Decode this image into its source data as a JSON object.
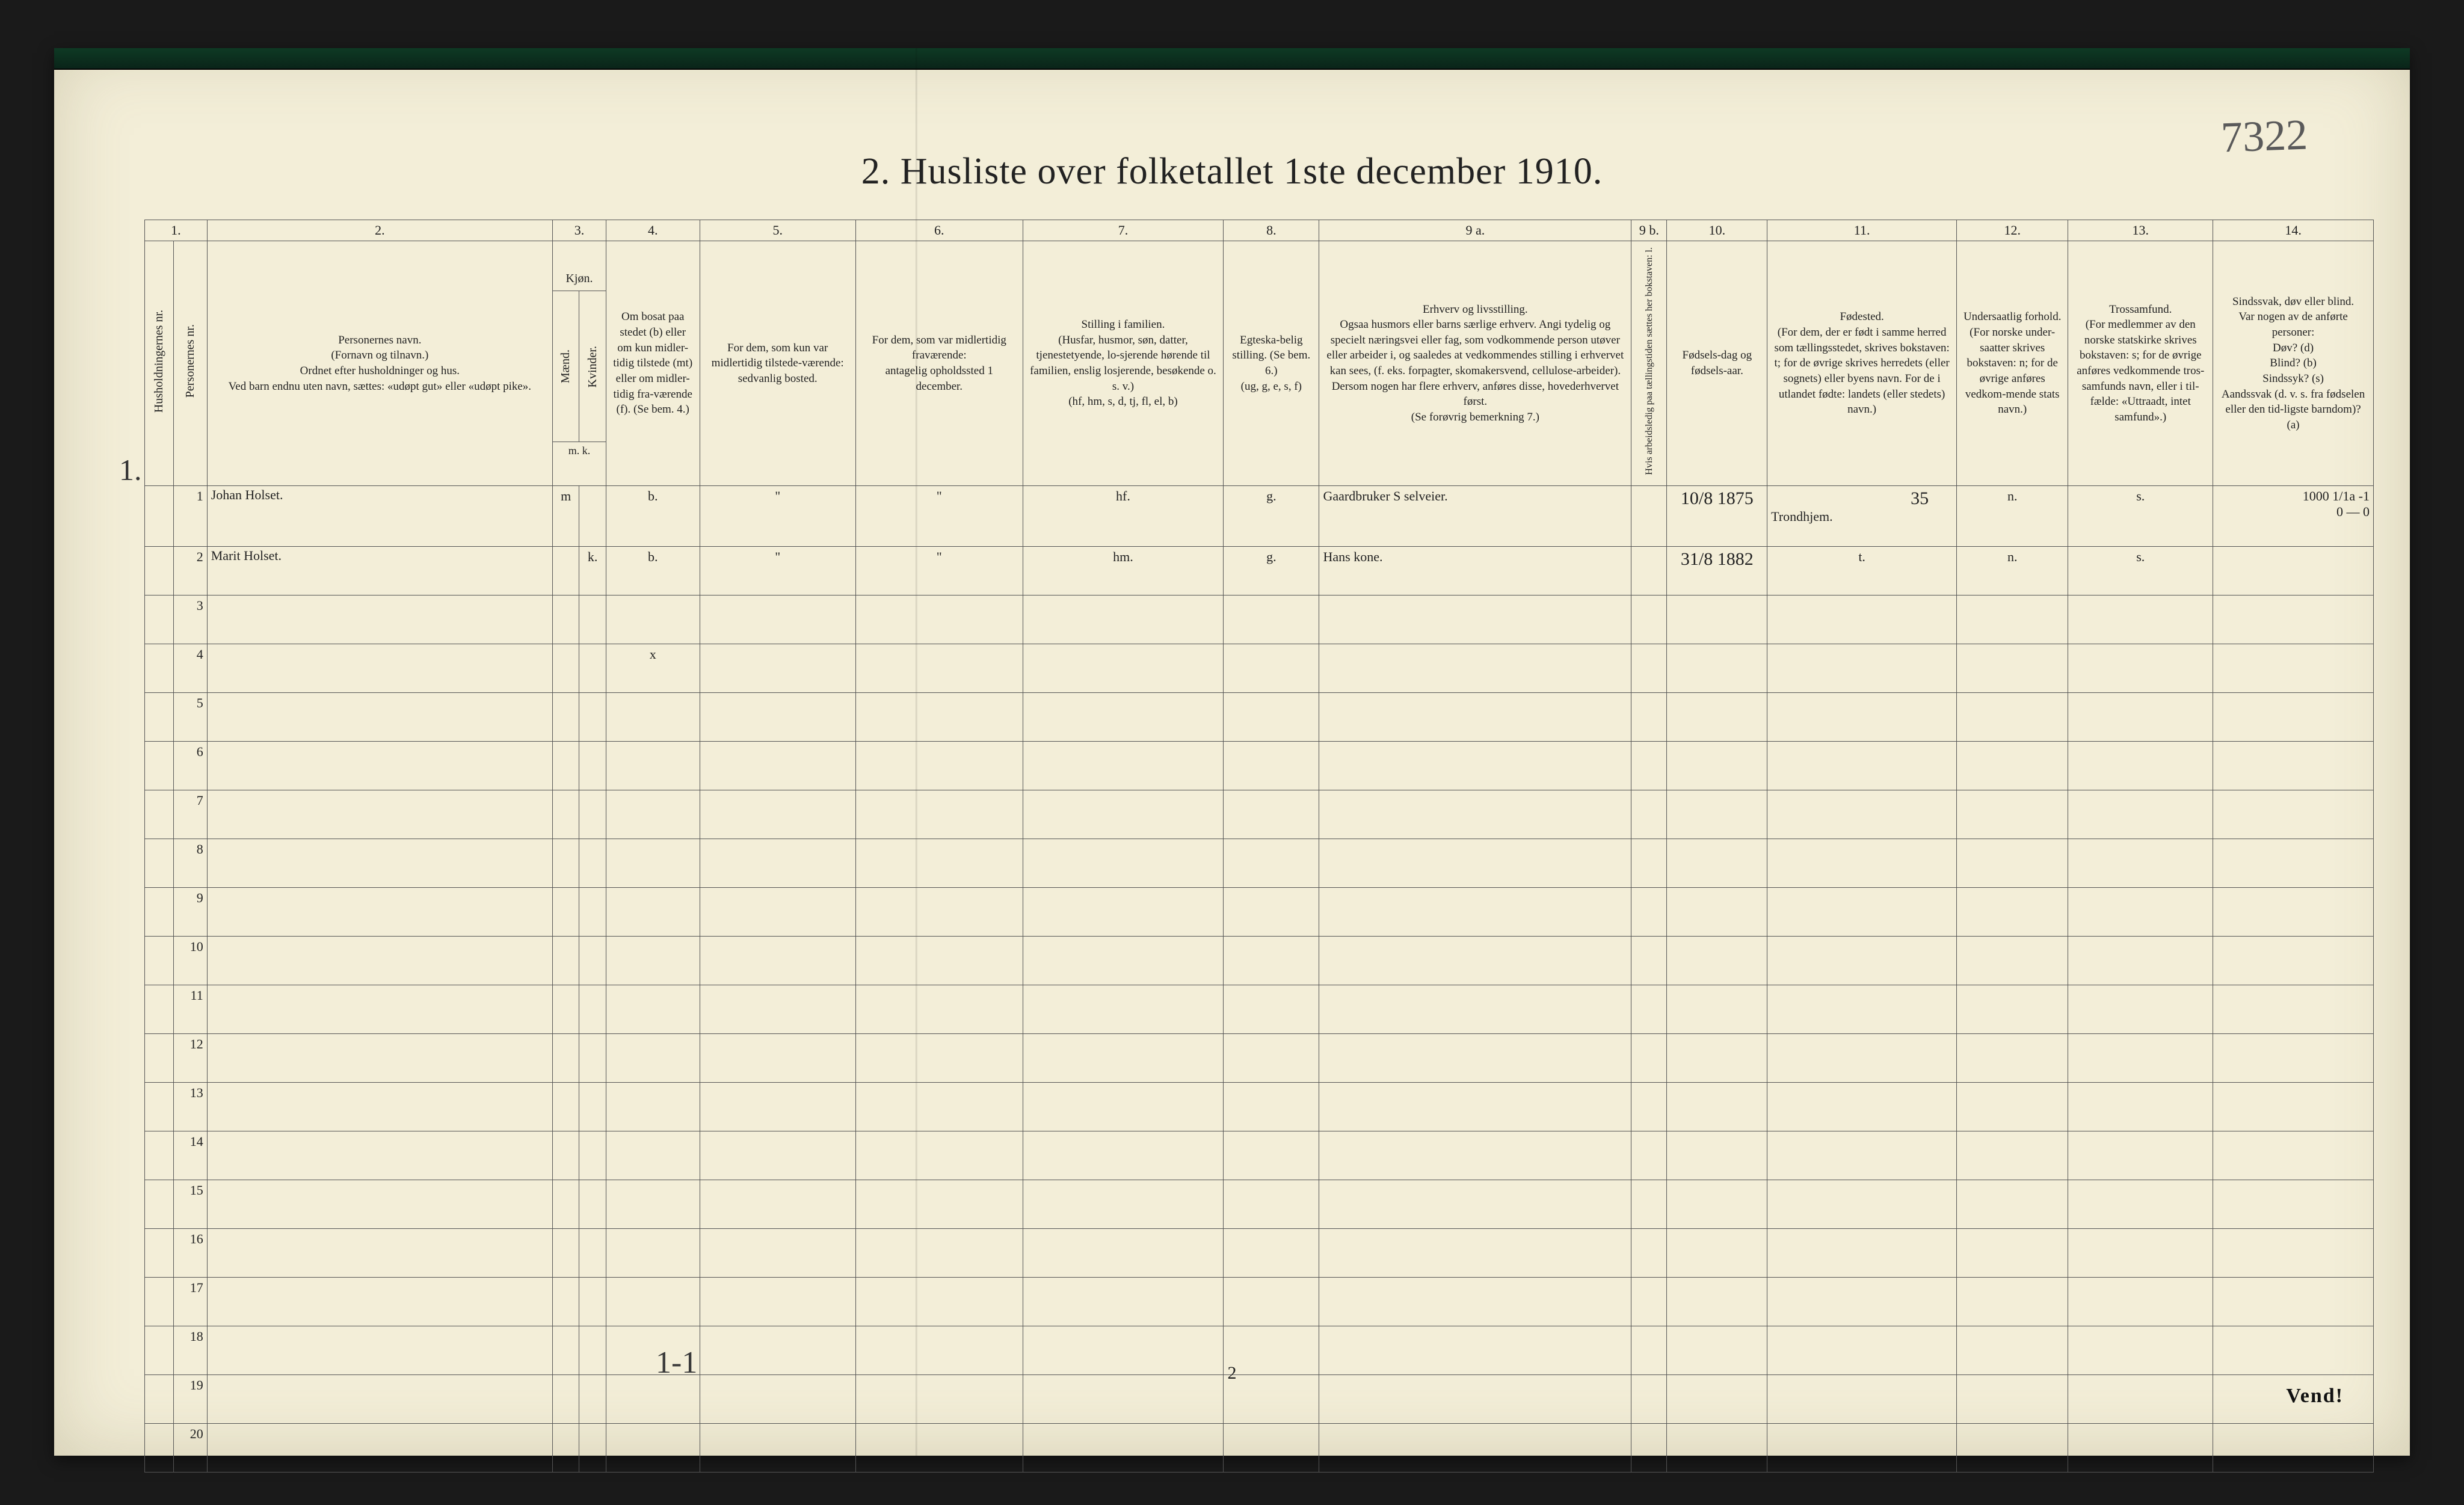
{
  "page_number_written": "7322",
  "title": "2.  Husliste over folketallet 1ste december 1910.",
  "footer": {
    "page_num": "2",
    "tally": "1-1",
    "vend": "Vend!"
  },
  "household_leader_mark": "1.",
  "columns": {
    "nums": [
      "1.",
      "2.",
      "3.",
      "4.",
      "5.",
      "6.",
      "7.",
      "8.",
      "9 a.",
      "9 b.",
      "10.",
      "11.",
      "12.",
      "13.",
      "14."
    ],
    "c1a": "Husholdningernes nr.",
    "c1b": "Personernes nr.",
    "c2": "Personernes navn.\n(Fornavn og tilnavn.)\nOrdnet efter husholdninger og hus.\nVed barn endnu uten navn, sættes: «udøpt gut» eller «udøpt pike».",
    "c3a": "Kjøn.",
    "c3b": "Mænd.",
    "c3c": "Kvinder.",
    "c3d": "m.  k.",
    "c4": "Om bosat paa stedet (b) eller om kun midler-tidig tilstede (mt) eller om midler-tidig fra-værende (f). (Se bem. 4.)",
    "c5": "For dem, som kun var midlertidig tilstede-værende:\nsedvanlig bosted.",
    "c6": "For dem, som var midlertidig fraværende:\nantagelig opholdssted 1 december.",
    "c7": "Stilling i familien.\n(Husfar, husmor, søn, datter, tjenestetyende, lo-sjerende hørende til familien, enslig losjerende, besøkende o. s. v.)\n(hf, hm, s, d, tj, fl, el, b)",
    "c8": "Egteska-belig stilling. (Se bem. 6.)\n(ug, g, e, s, f)",
    "c9a": "Erhverv og livsstilling.\nOgsaa husmors eller barns særlige erhverv. Angi tydelig og specielt næringsvei eller fag, som vodkommende person utøver eller arbeider i, og saaledes at vedkommendes stilling i erhvervet kan sees, (f. eks. forpagter, skomakersvend, cellulose-arbeider). Dersom nogen har flere erhverv, anføres disse, hovederhvervet først.\n(Se forøvrig bemerkning 7.)",
    "c9b": "Hvis arbeidsledig paa tællingstiden sættes her bokstaven: l.",
    "c10": "Fødsels-dag og fødsels-aar.",
    "c11": "Fødested.\n(For dem, der er født i samme herred som tællingsstedet, skrives bokstaven: t; for de øvrige skrives herredets (eller sognets) eller byens navn. For de i utlandet fødte: landets (eller stedets) navn.)",
    "c12": "Undersaatlig forhold.\n(For norske under-saatter skrives bokstaven: n; for de øvrige anføres vedkom-mende stats navn.)",
    "c13": "Trossamfund.\n(For medlemmer av den norske statskirke skrives bokstaven: s; for de øvrige anføres vedkommende tros-samfunds navn, eller i til-fælde: «Uttraadt, intet samfund».)",
    "c14": "Sindssvak, døv eller blind.\nVar nogen av de anførte personer:\nDøv?        (d)\nBlind?      (b)\nSindssyk? (s)\nAandssvak (d. v. s. fra fødselen eller den tid-ligste barndom)?  (a)"
  },
  "rows": [
    {
      "num": "1",
      "name": "Johan Holset.",
      "sex": "m",
      "residence": "b.",
      "col5": "\"",
      "col6": "\"",
      "family_pos": "hf.",
      "marital": "g.",
      "occupation": "Gaardbruker S selveier.",
      "col9b": "",
      "birth": "10/8 1875",
      "birthplace_top": "35",
      "birthplace": "Trondhjem.",
      "nationality": "n.",
      "faith": "s.",
      "col14": "1000  1/1a  -1\n0  —  0"
    },
    {
      "num": "2",
      "name": "Marit Holset.",
      "sex": "k.",
      "residence": "b.",
      "col5": "\"",
      "col6": "\"",
      "family_pos": "hm.",
      "marital": "g.",
      "occupation": "Hans kone.",
      "col9b": "",
      "birth": "31/8 1882",
      "birthplace_top": "",
      "birthplace": "t.",
      "nationality": "n.",
      "faith": "s.",
      "col14": ""
    }
  ],
  "row4_mark": "x",
  "empty_row_nums": [
    "3",
    "4",
    "5",
    "6",
    "7",
    "8",
    "9",
    "10",
    "11",
    "12",
    "13",
    "14",
    "15",
    "16",
    "17",
    "18",
    "19",
    "20"
  ],
  "colors": {
    "paper": "#f3eed8",
    "ink": "#222222",
    "rule": "#555555",
    "hand": "#3a3a3a",
    "topbar": "#0e3a24"
  },
  "col_widths_pct": [
    1.3,
    1.5,
    15.5,
    1.2,
    1.2,
    4.2,
    7.0,
    7.5,
    9.0,
    4.3,
    14.0,
    1.6,
    4.5,
    8.5,
    5.0,
    6.5,
    7.2
  ]
}
